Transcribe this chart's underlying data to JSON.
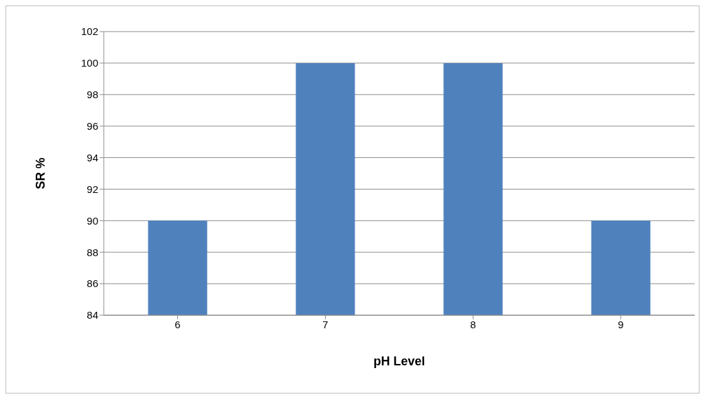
{
  "chart_data": {
    "type": "bar",
    "xlabel": "pH Level",
    "ylabel": "SR %",
    "categories": [
      "6",
      "7",
      "8",
      "9"
    ],
    "values": [
      90,
      100,
      100,
      90
    ],
    "color": "#4f81bd",
    "ylim": [
      84,
      102
    ],
    "yticks": [
      84,
      86,
      88,
      90,
      92,
      94,
      96,
      98,
      100,
      102
    ],
    "grid": "y"
  }
}
